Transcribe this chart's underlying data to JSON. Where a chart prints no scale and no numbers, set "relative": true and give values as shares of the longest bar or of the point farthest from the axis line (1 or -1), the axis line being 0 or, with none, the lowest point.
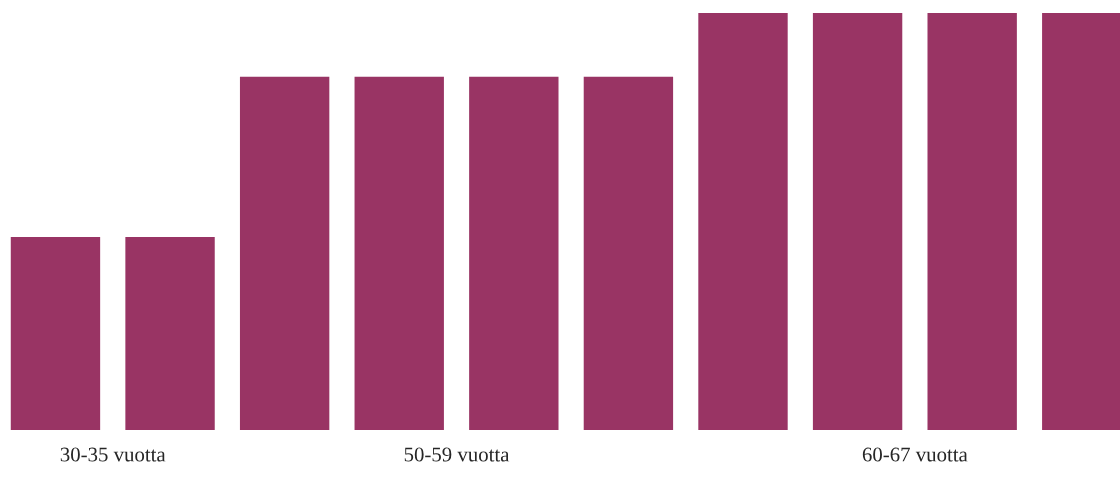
{
  "chart_data": {
    "type": "bar",
    "relative": true,
    "categories": [
      null,
      null,
      null,
      null,
      null,
      null,
      null,
      null,
      null,
      null
    ],
    "values": [
      0.463,
      0.463,
      0.847,
      0.847,
      0.847,
      0.847,
      1,
      1,
      1,
      1
    ],
    "color": "#993464",
    "annotations": [
      "30-35 vuotta",
      "50-59 vuotta",
      "60-67 vuotta"
    ]
  }
}
